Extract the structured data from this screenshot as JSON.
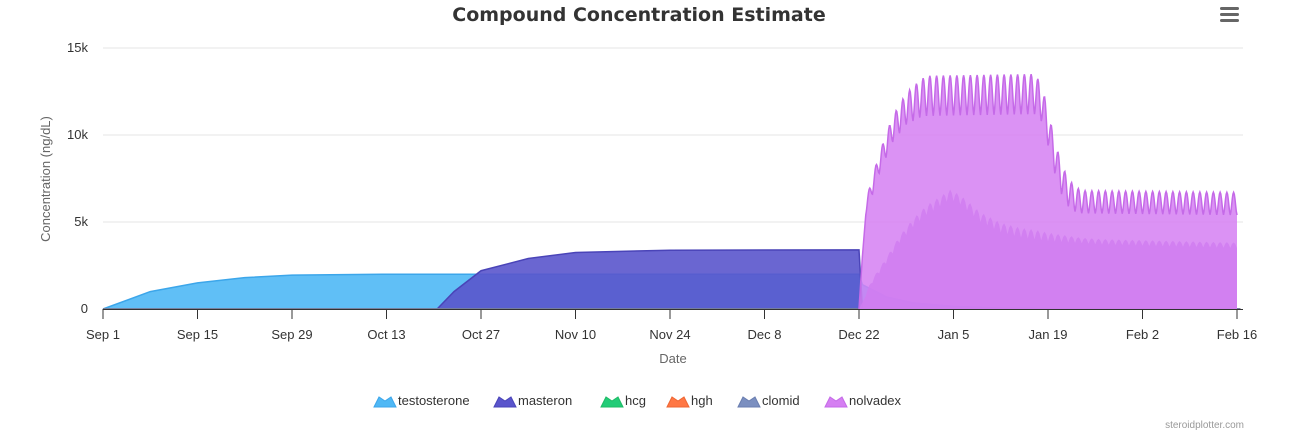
{
  "chart_data": {
    "type": "area",
    "title": "Compound Concentration Estimate",
    "xlabel": "Date",
    "ylabel": "Concentration (ng/dL)",
    "x_start": "Sep 1",
    "x_end": "Feb 16",
    "ylim": [
      0,
      15000
    ],
    "y_ticks": [
      {
        "value": 0,
        "label": "0"
      },
      {
        "value": 5000,
        "label": "5k"
      },
      {
        "value": 10000,
        "label": "10k"
      },
      {
        "value": 15000,
        "label": "15k"
      }
    ],
    "x_ticks": [
      {
        "day": 0,
        "label": "Sep 1"
      },
      {
        "day": 14,
        "label": "Sep 15"
      },
      {
        "day": 28,
        "label": "Sep 29"
      },
      {
        "day": 42,
        "label": "Oct 13"
      },
      {
        "day": 56,
        "label": "Oct 27"
      },
      {
        "day": 70,
        "label": "Nov 10"
      },
      {
        "day": 84,
        "label": "Nov 24"
      },
      {
        "day": 98,
        "label": "Dec 8"
      },
      {
        "day": 112,
        "label": "Dec 22"
      },
      {
        "day": 126,
        "label": "Jan 5"
      },
      {
        "day": 140,
        "label": "Jan 19"
      },
      {
        "day": 154,
        "label": "Feb 2"
      },
      {
        "day": 168,
        "label": "Feb 16"
      }
    ],
    "grid": true,
    "legend_position": "bottom-center",
    "series": [
      {
        "name": "testosterone",
        "color": "#4fb8f5",
        "line_color": "#3ca6ea",
        "points": [
          [
            0,
            0
          ],
          [
            7,
            1000
          ],
          [
            14,
            1500
          ],
          [
            21,
            1800
          ],
          [
            28,
            1950
          ],
          [
            42,
            2000
          ],
          [
            112,
            2000
          ],
          [
            112.5,
            1400
          ],
          [
            116,
            700
          ],
          [
            120,
            350
          ],
          [
            126,
            150
          ],
          [
            133,
            50
          ],
          [
            147,
            0
          ],
          [
            168.5,
            0
          ]
        ]
      },
      {
        "name": "masteron",
        "color": "#5a55cc",
        "line_color": "#4a44b8",
        "points": [
          [
            49.5,
            0
          ],
          [
            52,
            1000
          ],
          [
            56,
            2200
          ],
          [
            63,
            2900
          ],
          [
            70,
            3250
          ],
          [
            84,
            3380
          ],
          [
            112,
            3400
          ],
          [
            112.5,
            0
          ],
          [
            168.5,
            0
          ]
        ]
      },
      {
        "name": "hcg",
        "color": "#22cc77",
        "line_color": "#1fbb66",
        "points": [
          [
            0,
            0
          ],
          [
            168.5,
            0
          ]
        ]
      },
      {
        "name": "hgh",
        "color": "#ff7744",
        "line_color": "#ee6633",
        "points": [
          [
            0,
            0
          ],
          [
            168.5,
            0
          ]
        ]
      },
      {
        "name": "clomid",
        "color": "#7b8fc0",
        "line_color": "#6a7eb0",
        "points": [
          [
            0,
            0
          ],
          [
            168.5,
            0
          ]
        ]
      },
      {
        "name": "nolvadex",
        "color": "#d57ff2",
        "line_color": "#c56ae8",
        "points": [
          [
            112,
            0
          ],
          [
            112.5,
            3000
          ],
          [
            113,
            5400
          ],
          [
            115,
            7800
          ],
          [
            117,
            9600
          ],
          [
            119,
            10600
          ],
          [
            121,
            11000
          ],
          [
            122,
            11100
          ],
          [
            138,
            11200
          ],
          [
            139,
            10800
          ],
          [
            140,
            9400
          ],
          [
            141,
            7800
          ],
          [
            142,
            6600
          ],
          [
            143,
            5900
          ],
          [
            144,
            5600
          ],
          [
            145,
            5500
          ],
          [
            168,
            5400
          ]
        ],
        "secondary_points": [
          [
            112,
            0
          ],
          [
            114,
            1500
          ],
          [
            116,
            2600
          ],
          [
            118,
            3800
          ],
          [
            120,
            4700
          ],
          [
            122,
            5400
          ],
          [
            124,
            5900
          ],
          [
            125.5,
            6300
          ],
          [
            127,
            6000
          ],
          [
            130,
            5000
          ],
          [
            133,
            4400
          ],
          [
            136,
            4100
          ],
          [
            140,
            3900
          ],
          [
            148,
            3700
          ],
          [
            168,
            3500
          ]
        ],
        "oscillation": [
          {
            "from": 113,
            "to": 122,
            "amp_start": 800,
            "amp_end": 2300
          },
          {
            "from": 122,
            "to": 138,
            "amp_start": 2300,
            "amp_end": 2300
          },
          {
            "from": 138,
            "to": 145,
            "amp_start": 2300,
            "amp_end": 1300
          },
          {
            "from": 145,
            "to": 168,
            "amp_start": 1300,
            "amp_end": 1300
          }
        ]
      }
    ]
  },
  "credit": "steroidplotter.com",
  "menu_icon": "hamburger-menu-icon"
}
